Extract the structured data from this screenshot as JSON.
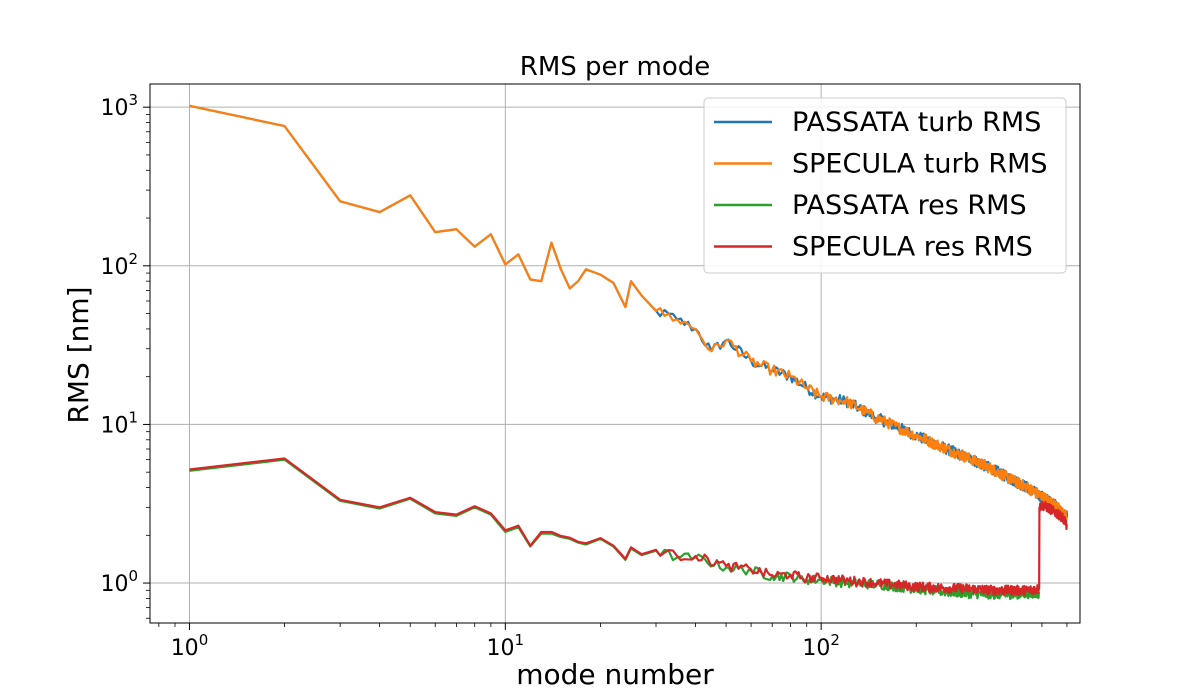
{
  "chart_data": {
    "type": "line",
    "title": "RMS per mode",
    "xlabel": "mode number",
    "ylabel": "RMS [nm]",
    "xscale": "log",
    "yscale": "log",
    "xlim": [
      0.75,
      660
    ],
    "ylim": [
      0.56,
      1400
    ],
    "grid": true,
    "legend_position": "top-right",
    "xticks": [
      {
        "value": 1,
        "base": "10",
        "exp": "0"
      },
      {
        "value": 10,
        "base": "10",
        "exp": "1"
      },
      {
        "value": 100,
        "base": "10",
        "exp": "2"
      }
    ],
    "yticks": [
      {
        "value": 1,
        "base": "10",
        "exp": "0"
      },
      {
        "value": 10,
        "base": "10",
        "exp": "1"
      },
      {
        "value": 100,
        "base": "10",
        "exp": "2"
      },
      {
        "value": 1000,
        "base": "10",
        "exp": "3"
      }
    ],
    "series": [
      {
        "name": "PASSATA turb RMS",
        "color": "#1f77b4",
        "x": [
          1,
          2,
          3,
          4,
          5,
          6,
          7,
          8,
          9,
          10,
          11,
          12,
          13,
          14,
          15,
          16,
          17,
          18,
          20,
          22,
          24,
          25,
          27,
          30,
          35,
          40,
          45,
          50,
          60,
          70,
          80,
          90,
          100,
          120,
          150,
          200,
          250,
          300,
          350,
          400,
          450,
          500,
          550,
          600
        ],
        "y": [
          1020,
          760,
          255,
          218,
          278,
          163,
          170,
          132,
          158,
          102,
          118,
          82,
          80,
          140,
          95,
          72,
          80,
          95,
          88,
          78,
          55,
          80,
          65,
          52,
          46,
          40,
          29,
          34,
          25,
          22,
          20,
          17,
          15,
          14,
          11,
          8.5,
          7,
          6,
          5.2,
          4.5,
          4,
          3.5,
          3.1,
          2.6
        ]
      },
      {
        "name": "SPECULA turb RMS",
        "color": "#ff7f0e",
        "x": [
          1,
          2,
          3,
          4,
          5,
          6,
          7,
          8,
          9,
          10,
          11,
          12,
          13,
          14,
          15,
          16,
          17,
          18,
          20,
          22,
          24,
          25,
          27,
          30,
          35,
          40,
          45,
          50,
          60,
          70,
          80,
          90,
          100,
          120,
          150,
          200,
          250,
          300,
          350,
          400,
          450,
          500,
          550,
          600
        ],
        "y": [
          1020,
          760,
          255,
          218,
          278,
          163,
          170,
          132,
          158,
          102,
          118,
          82,
          80,
          140,
          95,
          72,
          80,
          95,
          88,
          78,
          55,
          80,
          65,
          52,
          46,
          40,
          29,
          34,
          25,
          22,
          20,
          17,
          15,
          14,
          11,
          8.5,
          7,
          6,
          5.2,
          4.5,
          4,
          3.5,
          3.1,
          2.6
        ]
      },
      {
        "name": "PASSATA res RMS",
        "color": "#2ca02c",
        "x": [
          1,
          2,
          3,
          4,
          5,
          6,
          7,
          8,
          9,
          10,
          11,
          12,
          13,
          14,
          15,
          16,
          17,
          18,
          20,
          22,
          24,
          25,
          27,
          30,
          35,
          40,
          50,
          60,
          70,
          80,
          90,
          100,
          120,
          150,
          200,
          250,
          300,
          350,
          400,
          450,
          490
        ],
        "y": [
          5.1,
          6.0,
          3.3,
          2.95,
          3.4,
          2.75,
          2.65,
          3.0,
          2.7,
          2.1,
          2.25,
          1.7,
          2.05,
          2.05,
          1.95,
          1.9,
          1.8,
          1.75,
          1.9,
          1.7,
          1.4,
          1.65,
          1.5,
          1.6,
          1.45,
          1.45,
          1.25,
          1.2,
          1.1,
          1.1,
          1.05,
          1.05,
          1.0,
          0.98,
          0.92,
          0.88,
          0.86,
          0.85,
          0.85,
          0.86,
          0.86
        ]
      },
      {
        "name": "SPECULA res RMS",
        "color": "#d62728",
        "x": [
          1,
          2,
          3,
          4,
          5,
          6,
          7,
          8,
          9,
          10,
          11,
          12,
          13,
          14,
          15,
          16,
          17,
          18,
          20,
          22,
          24,
          25,
          27,
          30,
          35,
          40,
          50,
          60,
          70,
          80,
          90,
          100,
          120,
          150,
          200,
          250,
          300,
          350,
          400,
          450,
          490,
          491,
          500,
          520,
          550,
          580,
          600
        ],
        "y": [
          5.2,
          6.1,
          3.35,
          3.0,
          3.45,
          2.8,
          2.7,
          3.05,
          2.75,
          2.15,
          2.3,
          1.72,
          2.1,
          2.1,
          1.98,
          1.93,
          1.82,
          1.78,
          1.92,
          1.72,
          1.42,
          1.68,
          1.52,
          1.62,
          1.48,
          1.48,
          1.28,
          1.22,
          1.12,
          1.13,
          1.07,
          1.08,
          1.04,
          1.0,
          0.95,
          0.93,
          0.92,
          0.9,
          0.9,
          0.9,
          0.92,
          3.0,
          3.1,
          3.0,
          2.8,
          2.6,
          2.3
        ]
      }
    ]
  }
}
